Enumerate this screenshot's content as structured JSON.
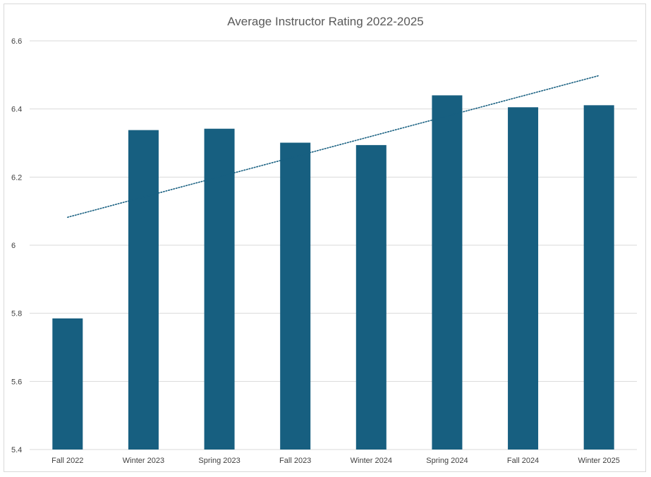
{
  "chart_data": {
    "type": "bar",
    "title": "Average Instructor Rating 2022-2025",
    "categories": [
      "Fall 2022",
      "Winter 2023",
      "Spring 2023",
      "Fall 2023",
      "Winter 2024",
      "Spring 2024",
      "Fall 2024",
      "Winter 2025"
    ],
    "values": [
      5.785,
      6.338,
      6.342,
      6.301,
      6.294,
      6.44,
      6.405,
      6.411
    ],
    "ylim": [
      5.4,
      6.6
    ],
    "yticks": [
      "5.4",
      "5.6",
      "5.8",
      "6",
      "6.2",
      "6.4",
      "6.6"
    ],
    "xlabel": "",
    "ylabel": "",
    "grid": true,
    "legend": "none",
    "trendline": {
      "type": "linear",
      "style": "dotted",
      "start": 6.082,
      "end": 6.498
    },
    "colors": {
      "bar": "#175f80",
      "trendline": "#175f80",
      "grid": "#d9d9d9"
    }
  }
}
